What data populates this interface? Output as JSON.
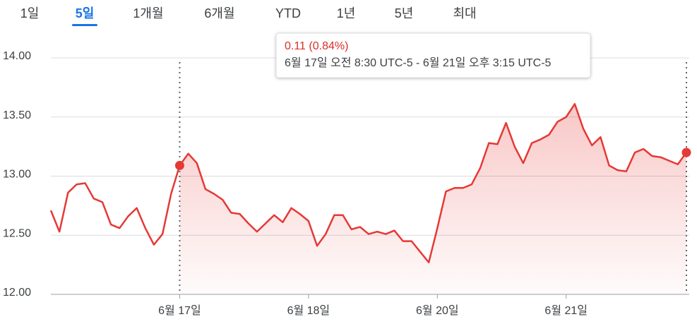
{
  "chart_data": {
    "type": "line",
    "tabs": [
      "1일",
      "5일",
      "1개월",
      "6개월",
      "YTD",
      "1년",
      "5년",
      "최대"
    ],
    "selected_tab": 1,
    "tooltip": {
      "change": "0.11 (0.84%)",
      "range": "6월 17일 오전 8:30 UTC-5 - 6월 21일 오후 3:15 UTC-5"
    },
    "color": "#e53935",
    "values": [
      12.71,
      12.53,
      12.86,
      12.93,
      12.94,
      12.81,
      12.78,
      12.59,
      12.56,
      12.66,
      12.73,
      12.56,
      12.42,
      12.51,
      12.85,
      13.09,
      13.19,
      13.11,
      12.89,
      12.85,
      12.8,
      12.69,
      12.68,
      12.6,
      12.53,
      12.6,
      12.67,
      12.61,
      12.73,
      12.68,
      12.62,
      12.41,
      12.51,
      12.67,
      12.67,
      12.55,
      12.57,
      12.51,
      12.53,
      12.51,
      12.54,
      12.45,
      12.45,
      12.36,
      12.27,
      12.56,
      12.87,
      12.9,
      12.9,
      12.93,
      13.07,
      13.28,
      13.27,
      13.45,
      13.25,
      13.11,
      13.28,
      13.31,
      13.35,
      13.46,
      13.5,
      13.61,
      13.4,
      13.26,
      13.33,
      13.09,
      13.05,
      13.04,
      13.2,
      13.23,
      13.17,
      13.16,
      13.13,
      13.1,
      13.2
    ],
    "markers": [
      15,
      74
    ],
    "xlim": [
      0,
      74
    ],
    "xticks": [
      {
        "value": 15,
        "label": "6월 17일"
      },
      {
        "value": 30,
        "label": "6월 18일"
      },
      {
        "value": 45,
        "label": "6월 20일"
      },
      {
        "value": 60,
        "label": "6월 21일"
      }
    ],
    "ylim": [
      12,
      14
    ],
    "yticks": [
      {
        "value": 12,
        "label": "12.00"
      },
      {
        "value": 12.5,
        "label": "12.50"
      },
      {
        "value": 13,
        "label": "13.00"
      },
      {
        "value": 13.5,
        "label": "13.50"
      },
      {
        "value": 14,
        "label": "14.00"
      }
    ],
    "grid": true
  }
}
